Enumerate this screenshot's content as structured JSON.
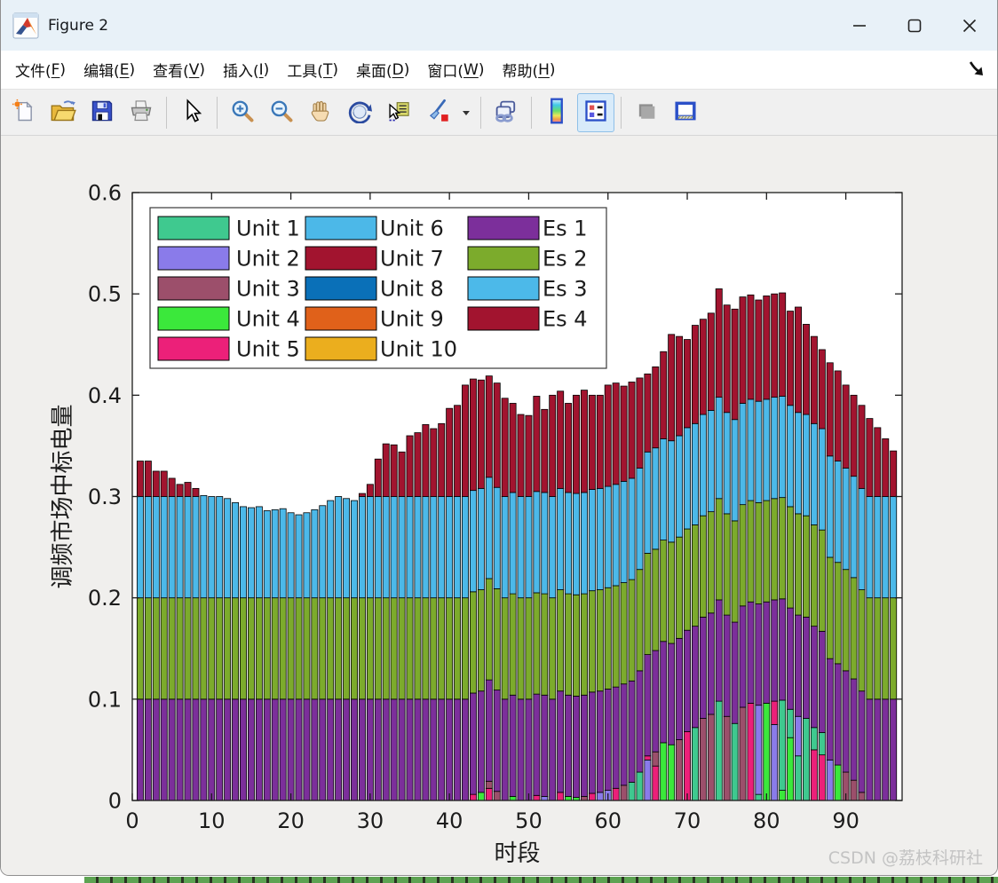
{
  "window": {
    "title": "Figure 2",
    "icon": "matlab-logo-icon",
    "caption_buttons": [
      {
        "name": "minimize-button",
        "glyph": "minimize"
      },
      {
        "name": "maximize-button",
        "glyph": "maximize"
      },
      {
        "name": "close-button",
        "glyph": "close"
      }
    ]
  },
  "menu": {
    "items": [
      {
        "label": "文件(F)"
      },
      {
        "label": "编辑(E)"
      },
      {
        "label": "查看(V)"
      },
      {
        "label": "插入(I)"
      },
      {
        "label": "工具(T)"
      },
      {
        "label": "桌面(D)"
      },
      {
        "label": "窗口(W)"
      },
      {
        "label": "帮助(H)"
      }
    ],
    "dock_arrow_icon": "dock-figure-arrow-icon"
  },
  "toolbar": {
    "buttons": [
      {
        "name": "new-figure-button",
        "icon": "new-figure-icon"
      },
      {
        "name": "open-file-button",
        "icon": "open-folder-icon"
      },
      {
        "name": "save-figure-button",
        "icon": "save-icon"
      },
      {
        "name": "print-figure-button",
        "icon": "print-icon"
      },
      {
        "sep": true
      },
      {
        "name": "edit-plot-button",
        "icon": "arrow-cursor-icon"
      },
      {
        "sep": true
      },
      {
        "name": "zoom-in-button",
        "icon": "zoom-in-icon"
      },
      {
        "name": "zoom-out-button",
        "icon": "zoom-out-icon"
      },
      {
        "name": "pan-button",
        "icon": "pan-hand-icon"
      },
      {
        "name": "rotate-3d-button",
        "icon": "rotate-3d-icon"
      },
      {
        "name": "data-cursor-button",
        "icon": "data-cursor-icon"
      },
      {
        "name": "brush-data-button",
        "icon": "brush-icon"
      },
      {
        "name": "brush-dropdown-button",
        "icon": "dropdown-arrow-icon",
        "narrow": true
      },
      {
        "sep": true
      },
      {
        "name": "link-plots-button",
        "icon": "link-plots-icon"
      },
      {
        "sep": true
      },
      {
        "name": "insert-colorbar-button",
        "icon": "colorbar-icon"
      },
      {
        "name": "insert-legend-button",
        "icon": "legend-icon",
        "active": true
      },
      {
        "sep": true
      },
      {
        "name": "hide-plot-tools-button",
        "icon": "hide-plot-tools-icon"
      },
      {
        "name": "show-plot-tools-button",
        "icon": "show-plot-tools-icon"
      }
    ]
  },
  "watermark": "CSDN @荔枝科研社",
  "chart_data": {
    "type": "bar",
    "subtype": "stacked",
    "xlabel": "时段",
    "ylabel": "调频市场中标电量",
    "xlim": [
      0,
      97.1
    ],
    "ylim": [
      0,
      0.6
    ],
    "xticks": [
      "0",
      "10",
      "20",
      "30",
      "40",
      "50",
      "60",
      "70",
      "80",
      "90"
    ],
    "xtick_values": [
      0,
      10,
      20,
      30,
      40,
      50,
      60,
      70,
      80,
      90
    ],
    "yticks": [
      "0",
      "0.1",
      "0.2",
      "0.3",
      "0.4",
      "0.5",
      "0.6"
    ],
    "ytick_values": [
      0,
      0.1,
      0.2,
      0.3,
      0.4,
      0.5,
      0.6
    ],
    "grid": false,
    "legend_position": "inside-top-left",
    "n_bars": 96,
    "palette": {
      "u1": "#3FC98F",
      "u2": "#8A7BEA",
      "u3": "#9C4F6B",
      "u4": "#3BE83B",
      "u5": "#EC2079",
      "u6": "#4CB8E8",
      "u7": "#A2142F",
      "u8": "#0A70B8",
      "u9": "#E0611A",
      "u10": "#EBAE1E",
      "e1": "#7C2F9B",
      "e2": "#7CAB2C",
      "e3": "#4CB9E9",
      "e4": "#A2142F"
    },
    "legend": [
      {
        "key": "u1",
        "label": "Unit 1"
      },
      {
        "key": "u2",
        "label": "Unit 2"
      },
      {
        "key": "u3",
        "label": "Unit 3"
      },
      {
        "key": "u4",
        "label": "Unit 4"
      },
      {
        "key": "u5",
        "label": "Unit 5"
      },
      {
        "key": "u6",
        "label": "Unit 6"
      },
      {
        "key": "u7",
        "label": "Unit 7"
      },
      {
        "key": "u8",
        "label": "Unit 8"
      },
      {
        "key": "u9",
        "label": "Unit 9"
      },
      {
        "key": "u10",
        "label": "Unit 10"
      },
      {
        "key": "e1",
        "label": "Es 1"
      },
      {
        "key": "e2",
        "label": "Es 2"
      },
      {
        "key": "e3",
        "label": "Es 3"
      },
      {
        "key": "e4",
        "label": "Es 4"
      }
    ],
    "es1_constant": 0.1,
    "es2_constant": 0.1,
    "es3": [
      0.1,
      0.1,
      0.1,
      0.1,
      0.1,
      0.1,
      0.1,
      0.1,
      0.101,
      0.1,
      0.1,
      0.098,
      0.094,
      0.09,
      0.089,
      0.09,
      0.086,
      0.087,
      0.088,
      0.084,
      0.082,
      0.084,
      0.087,
      0.091,
      0.096,
      0.1,
      0.098,
      0.096,
      0.1,
      0.1,
      0.1,
      0.1,
      0.1,
      0.1,
      0.1,
      0.1,
      0.1,
      0.1,
      0.1,
      0.1,
      0.1,
      0.1,
      0.1,
      0.1,
      0.1,
      0.1,
      0.1,
      0.1,
      0.1,
      0.1,
      0.1,
      0.1,
      0.1,
      0.1,
      0.1,
      0.1,
      0.1,
      0.1,
      0.1,
      0.1,
      0.1,
      0.1,
      0.1,
      0.1,
      0.1,
      0.1,
      0.1,
      0.1,
      0.1,
      0.1,
      0.1,
      0.1,
      0.1,
      0.1,
      0.1,
      0.1,
      0.1,
      0.1,
      0.1,
      0.1,
      0.1,
      0.1,
      0.1,
      0.1,
      0.1,
      0.1,
      0.1,
      0.1,
      0.1,
      0.1,
      0.1,
      0.1,
      0.1,
      0.1,
      0.1,
      0.1
    ],
    "es4": [
      0.035,
      0.035,
      0.025,
      0.025,
      0.018,
      0.012,
      0.014,
      0.008,
      0,
      0,
      0,
      0,
      0,
      0,
      0,
      0,
      0,
      0,
      0,
      0,
      0,
      0,
      0,
      0,
      0,
      0,
      0,
      0,
      0.003,
      0.012,
      0.037,
      0.052,
      0.051,
      0.044,
      0.06,
      0.063,
      0.071,
      0.067,
      0.072,
      0.087,
      0.09,
      0.11,
      0.11,
      0.107,
      0.1,
      0.103,
      0.097,
      0.088,
      0.081,
      0.08,
      0.094,
      0.082,
      0.1,
      0.096,
      0.088,
      0.097,
      0.101,
      0.093,
      0.092,
      0.1,
      0.1,
      0.094,
      0.095,
      0.089,
      0.077,
      0.08,
      0.086,
      0.105,
      0.098,
      0.087,
      0.097,
      0.094,
      0.096,
      0.107,
      0.106,
      0.109,
      0.105,
      0.103,
      0.1,
      0.102,
      0.102,
      0.102,
      0.093,
      0.104,
      0.089,
      0.086,
      0.078,
      0.092,
      0.089,
      0.082,
      0.08,
      0.082,
      0.077,
      0.068,
      0.057,
      0.045
    ],
    "units_by_bar": {
      "43": [
        [
          "u5",
          0.006
        ]
      ],
      "44": [
        [
          "u4",
          0.008
        ]
      ],
      "45": [
        [
          "u5",
          0.012
        ],
        [
          "u3",
          0.007
        ]
      ],
      "46": [
        [
          "u3",
          0.009
        ]
      ],
      "48": [
        [
          "u4",
          0.004
        ]
      ],
      "51": [
        [
          "u5",
          0.005
        ]
      ],
      "52": [
        [
          "u2",
          0.004
        ]
      ],
      "54": [
        [
          "u5",
          0.008
        ]
      ],
      "55": [
        [
          "u4",
          0.004
        ]
      ],
      "56": [
        [
          "u4",
          0.003
        ]
      ],
      "57": [
        [
          "u3",
          0.004
        ]
      ],
      "58": [
        [
          "u5",
          0.007
        ]
      ],
      "59": [
        [
          "u2",
          0.008
        ]
      ],
      "60": [
        [
          "u2",
          0.01
        ]
      ],
      "61": [
        [
          "u5",
          0.012
        ]
      ],
      "62": [
        [
          "u3",
          0.015
        ]
      ],
      "63": [
        [
          "u1",
          0.018
        ]
      ],
      "64": [
        [
          "u1",
          0.028
        ]
      ],
      "65": [
        [
          "u2",
          0.04
        ],
        [
          "u5",
          0.004
        ]
      ],
      "66": [
        [
          "u5",
          0.034
        ],
        [
          "u3",
          0.014
        ]
      ],
      "67": [
        [
          "u4",
          0.057
        ]
      ],
      "68": [
        [
          "u4",
          0.055
        ]
      ],
      "69": [
        [
          "u3",
          0.06
        ]
      ],
      "70": [
        [
          "u5",
          0.068
        ]
      ],
      "71": [
        [
          "u1",
          0.072
        ]
      ],
      "72": [
        [
          "u3",
          0.081
        ]
      ],
      "73": [
        [
          "u3",
          0.085
        ]
      ],
      "74": [
        [
          "u1",
          0.098
        ]
      ],
      "75": [
        [
          "u3",
          0.083
        ]
      ],
      "76": [
        [
          "u1",
          0.076
        ]
      ],
      "77": [
        [
          "u3",
          0.092
        ]
      ],
      "78": [
        [
          "u5",
          0.096
        ]
      ],
      "79": [
        [
          "u1",
          0.006
        ],
        [
          "u2",
          0.088
        ]
      ],
      "80": [
        [
          "u4",
          0.096
        ]
      ],
      "81": [
        [
          "u2",
          0.075
        ],
        [
          "u5",
          0.023
        ]
      ],
      "82": [
        [
          "u4",
          0.01
        ],
        [
          "u1",
          0.089
        ]
      ],
      "83": [
        [
          "u4",
          0.062
        ],
        [
          "u1",
          0.028
        ]
      ],
      "84": [
        [
          "u1",
          0.044
        ],
        [
          "u2",
          0.039
        ]
      ],
      "85": [
        [
          "u1",
          0.081
        ]
      ],
      "86": [
        [
          "u5",
          0.05
        ],
        [
          "u1",
          0.022
        ]
      ],
      "87": [
        [
          "u5",
          0.045
        ],
        [
          "u1",
          0.022
        ]
      ],
      "88": [
        [
          "u2",
          0.04
        ]
      ],
      "89": [
        [
          "u4",
          0.035
        ]
      ],
      "90": [
        [
          "u3",
          0.028
        ]
      ],
      "91": [
        [
          "u3",
          0.02
        ]
      ],
      "92": [
        [
          "u3",
          0.008
        ]
      ]
    }
  }
}
